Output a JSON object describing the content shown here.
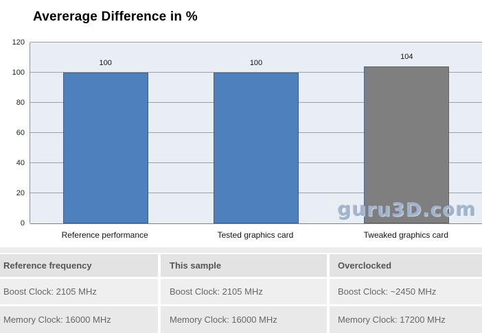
{
  "chart_data": {
    "type": "bar",
    "title": "Avererage Difference in %",
    "categories": [
      "Reference performance",
      "Tested graphics card",
      "Tweaked graphics card"
    ],
    "values": [
      100,
      100,
      104
    ],
    "value_labels": [
      "100",
      "100",
      "104"
    ],
    "bar_fill_colors": [
      "#4d80bd",
      "#4d80bd",
      "#7f7f7f"
    ],
    "bar_border_colors": [
      "#3b6191",
      "#3b6191",
      "#44658f"
    ],
    "xlabel": "",
    "ylabel": "",
    "ylim": [
      0,
      120
    ],
    "y_ticks": [
      0,
      20,
      40,
      60,
      80,
      100,
      120
    ],
    "grid": true,
    "legend": "none",
    "plot_background": "#e9edf4",
    "gridline_color": "#9f9f9f"
  },
  "watermark": "guru3D.com",
  "table": {
    "columns": [
      {
        "header": "Reference frequency",
        "rows": [
          "Boost Clock: 2105 MHz",
          "Memory Clock: 16000 MHz"
        ]
      },
      {
        "header": "This sample",
        "rows": [
          "Boost Clock: 2105 MHz",
          "Memory Clock: 16000 MHz"
        ]
      },
      {
        "header": "Overclocked",
        "rows": [
          "Boost Clock: ~2450 MHz",
          "Memory Clock: 17200 MHz"
        ]
      }
    ]
  }
}
